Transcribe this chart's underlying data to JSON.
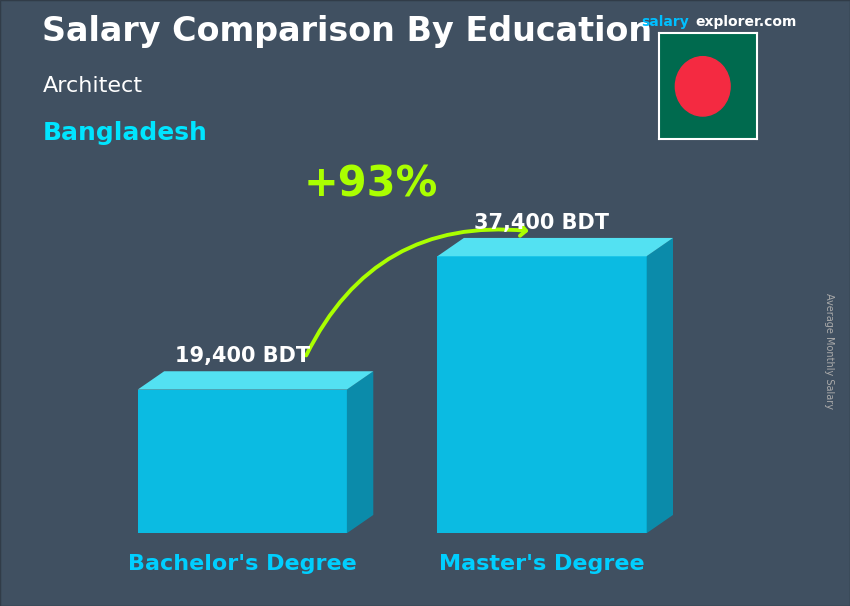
{
  "title_main": "Salary Comparison By Education",
  "site_salary": "salary",
  "site_explorer": "explorer.com",
  "subtitle_job": "Architect",
  "subtitle_country": "Bangladesh",
  "categories": [
    "Bachelor's Degree",
    "Master's Degree"
  ],
  "values": [
    19400,
    37400
  ],
  "value_labels": [
    "19,400 BDT",
    "37,400 BDT"
  ],
  "bar_color_face": "#00d4ff",
  "bar_color_top": "#55eeff",
  "bar_color_side": "#0099bb",
  "pct_change": "+93%",
  "pct_color": "#aaff00",
  "arrow_color": "#aaff00",
  "bg_color": "#4a5a6a",
  "overlay_color": "#3a4a58",
  "title_color": "#ffffff",
  "site_color_salary": "#00bfff",
  "site_color_explorer": "#ffffff",
  "subtitle_job_color": "#ffffff",
  "subtitle_country_color": "#00e5ff",
  "x_label_color": "#00cfff",
  "value_label_color": "#ffffff",
  "ylabel_text": "Average Monthly Salary",
  "ylabel_color": "#aaaaaa",
  "flag_green": "#006a4e",
  "flag_red": "#f42a41",
  "ylim_max": 45000,
  "title_fontsize": 24,
  "subtitle_job_fontsize": 16,
  "subtitle_country_fontsize": 18,
  "value_fontsize": 15,
  "pct_fontsize": 30,
  "xlabel_fontsize": 16,
  "site_fontsize": 10
}
